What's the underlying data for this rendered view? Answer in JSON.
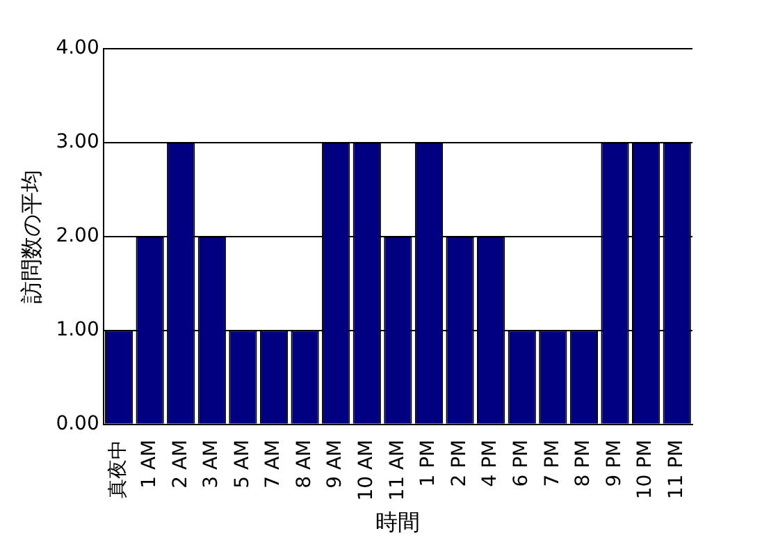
{
  "chart_data": {
    "type": "bar",
    "xlabel": "時間",
    "ylabel": "訪問数の平均",
    "categories": [
      "真夜中",
      "1 AM",
      "2 AM",
      "3 AM",
      "5 AM",
      "7 AM",
      "8 AM",
      "9 AM",
      "10 AM",
      "11 AM",
      "1 PM",
      "2 PM",
      "4 PM",
      "6 PM",
      "7 PM",
      "8 PM",
      "9 PM",
      "10 PM",
      "11 PM"
    ],
    "values": [
      1,
      2,
      3,
      2,
      1,
      1,
      1,
      3,
      3,
      2,
      3,
      2,
      2,
      1,
      1,
      1,
      3,
      3,
      3
    ],
    "color": "#000080",
    "ylim": [
      0,
      4
    ],
    "yticks": [
      {
        "value": 0,
        "label": "0.00"
      },
      {
        "value": 1,
        "label": "1.00"
      },
      {
        "value": 2,
        "label": "2.00"
      },
      {
        "value": 3,
        "label": "3.00"
      },
      {
        "value": 4,
        "label": "4.00"
      }
    ],
    "grid": "y",
    "legend": false
  }
}
